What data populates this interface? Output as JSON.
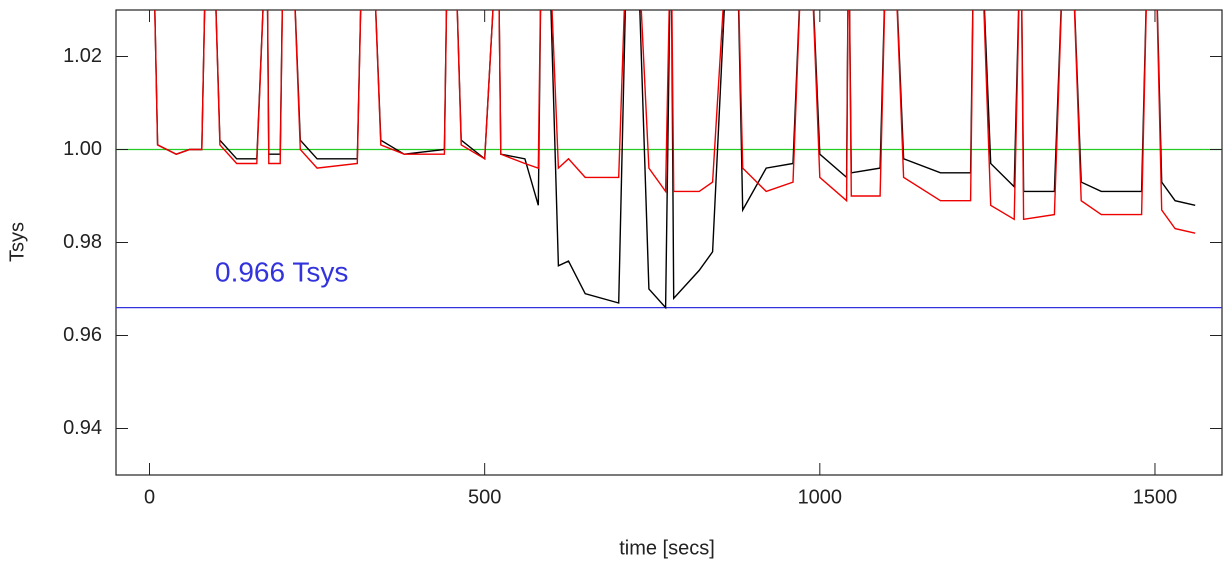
{
  "chart_data": {
    "type": "line",
    "xlabel": "time [secs]",
    "ylabel": "Tsys",
    "annotation": {
      "text": "0.966 Tsys",
      "color": "#3333dd"
    },
    "xlim": [
      -50,
      1600
    ],
    "ylim": [
      0.93,
      1.03
    ],
    "xticks": [
      0,
      500,
      1000,
      1500
    ],
    "yticks": [
      0.94,
      0.96,
      0.98,
      {
        "value": 1.0,
        "label": "1.00"
      },
      1.02
    ],
    "hlines": [
      {
        "value": 1.0,
        "color": "#22cc22"
      },
      {
        "value": 0.966,
        "color": "#3333dd"
      }
    ],
    "x": [
      5,
      12,
      40,
      60,
      78,
      85,
      95,
      105,
      130,
      160,
      175,
      178,
      195,
      200,
      212,
      225,
      250,
      310,
      318,
      332,
      345,
      380,
      440,
      445,
      455,
      465,
      500,
      520,
      524,
      560,
      580,
      585,
      595,
      610,
      625,
      650,
      700,
      713,
      727,
      745,
      770,
      778,
      782,
      820,
      840,
      864,
      876,
      885,
      920,
      960,
      975,
      985,
      1000,
      1040,
      1043,
      1047,
      1090,
      1100,
      1110,
      1125,
      1180,
      1225,
      1230,
      1240,
      1255,
      1290,
      1300,
      1304,
      1350,
      1365,
      1375,
      1390,
      1420,
      1480,
      1490,
      1500,
      1510,
      1530,
      1560
    ],
    "series": [
      {
        "color": "#000000",
        "values": [
          1.05,
          1.001,
          0.999,
          1.0,
          1.0,
          1.05,
          1.05,
          1.002,
          0.998,
          0.998,
          1.05,
          0.999,
          0.999,
          1.05,
          1.05,
          1.002,
          0.998,
          0.998,
          1.05,
          1.05,
          1.002,
          0.999,
          1.0,
          1.05,
          1.05,
          1.002,
          0.998,
          1.05,
          0.999,
          0.998,
          0.988,
          1.05,
          1.05,
          0.975,
          0.976,
          0.969,
          0.967,
          1.05,
          1.05,
          0.97,
          0.966,
          1.05,
          0.968,
          0.974,
          0.978,
          1.05,
          1.05,
          0.987,
          0.996,
          0.997,
          1.05,
          1.05,
          0.999,
          0.994,
          1.05,
          0.995,
          0.996,
          1.05,
          1.05,
          0.998,
          0.995,
          0.995,
          1.05,
          1.05,
          0.997,
          0.992,
          1.05,
          0.991,
          0.991,
          1.05,
          1.05,
          0.993,
          0.991,
          0.991,
          1.05,
          1.05,
          0.993,
          0.989,
          0.988
        ]
      },
      {
        "color": "#ee0000",
        "values": [
          1.05,
          1.001,
          0.999,
          1.0,
          1.0,
          1.05,
          1.05,
          1.001,
          0.997,
          0.997,
          1.05,
          0.997,
          0.997,
          1.05,
          1.05,
          1.0,
          0.996,
          0.997,
          1.05,
          1.05,
          1.001,
          0.999,
          0.999,
          1.05,
          1.05,
          1.001,
          0.998,
          1.05,
          0.999,
          0.997,
          0.996,
          1.05,
          1.05,
          0.996,
          0.998,
          0.994,
          0.994,
          1.05,
          1.05,
          0.996,
          0.991,
          1.05,
          0.991,
          0.991,
          0.993,
          1.05,
          1.05,
          0.996,
          0.991,
          0.993,
          1.05,
          1.05,
          0.994,
          0.989,
          1.05,
          0.99,
          0.99,
          1.05,
          1.05,
          0.994,
          0.989,
          0.989,
          1.05,
          1.05,
          0.988,
          0.985,
          1.05,
          0.985,
          0.986,
          1.05,
          1.05,
          0.989,
          0.986,
          0.986,
          1.05,
          1.05,
          0.987,
          0.983,
          0.982
        ]
      }
    ]
  }
}
